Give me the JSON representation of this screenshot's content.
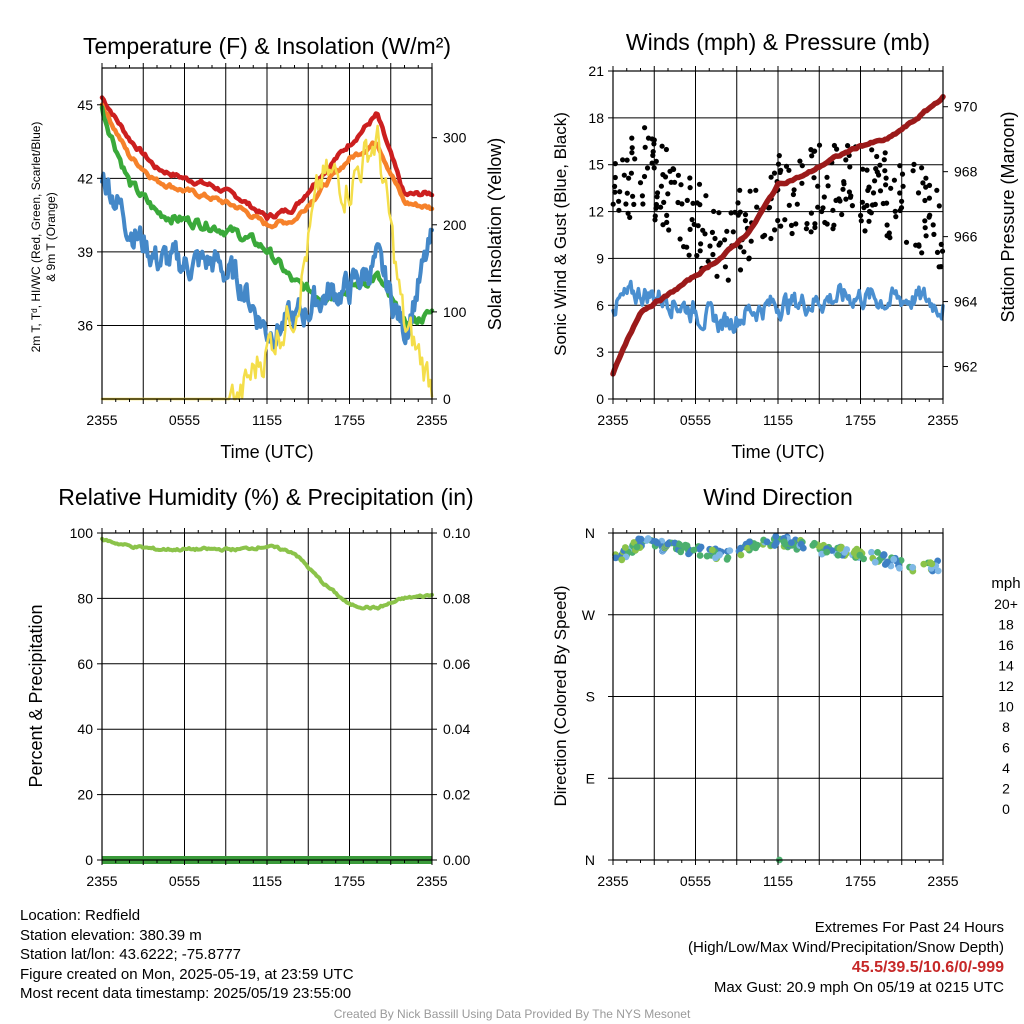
{
  "titles": {
    "temp": "Temperature (F) & Insolation (W/m²)",
    "winds": "Winds (mph) & Pressure (mb)",
    "rh": "Relative Humidity (%) & Precipitation (in)",
    "wdir": "Wind Direction"
  },
  "axis_labels": {
    "temp_left_line1": "2m T, Tᵈ, HI/WC (Red, Green, Scarlet/Blue)",
    "temp_left_line2": "& 9m T (Orange)",
    "temp_right": "Solar Insolation (Yellow)",
    "time": "Time (UTC)",
    "winds_left": "Sonic Wind & Gust (Blue, Black)",
    "winds_right": "Station Pressure (Maroon)",
    "rh_left": "Percent & Precipitation",
    "wdir_left": "Direction (Colored By Speed)"
  },
  "x_ticks": [
    "2355",
    "0555",
    "1155",
    "1755",
    "2355"
  ],
  "colorbar": {
    "unit": "mph",
    "labels": [
      "20+",
      "18",
      "16",
      "14",
      "12",
      "10",
      "8",
      "6",
      "4",
      "2",
      "0"
    ],
    "colors": [
      "#9e1a1a",
      "#c62828",
      "#e53935",
      "#f06a2c",
      "#f9a444",
      "#e8dc4e",
      "#8bc34a",
      "#4caf6e",
      "#3f80c4",
      "#7fb8e6",
      "#c7e6f7"
    ]
  },
  "footer": {
    "location": "Location: Redfield",
    "elevation": "Station elevation: 380.39 m",
    "latlon": "Station lat/lon: 43.6222; -75.8777",
    "created": "Figure created on Mon, 2025-05-19, at 23:59 UTC",
    "recent": "Most recent data timestamp: 2025/05/19 23:55:00",
    "extremes_title": "Extremes For Past 24 Hours",
    "extremes_sub": "(High/Low/Max Wind/Precipitation/Snow Depth)",
    "extremes_values": "45.5/39.5/10.6/0/-999",
    "max_gust": "Max Gust: 20.9 mph On 05/19 at 0215 UTC"
  },
  "credit": "Created By Nick Bassill Using Data Provided By The NYS Mesonet",
  "chart_data": [
    {
      "id": "temp",
      "type": "line",
      "title": "Temperature (F) & Insolation (W/m2)",
      "xlabel": "Time (UTC)",
      "ylabel": "2m T, Td, HI/WC (Red, Green, Scarlet/Blue) & 9m T (Orange)",
      "y2label": "Solar Insolation (Yellow)",
      "x_hours": [
        0,
        2,
        4,
        6,
        8,
        10,
        12,
        14,
        16,
        18,
        20,
        22,
        24
      ],
      "ylim": [
        33,
        46.5
      ],
      "y_ticks": [
        36,
        39,
        42,
        45
      ],
      "y2lim": [
        0,
        380
      ],
      "y2_ticks": [
        0,
        100,
        200,
        300
      ],
      "series": [
        {
          "name": "2m T",
          "color": "#cc1f1f",
          "axis": "left",
          "values": [
            45.3,
            43.6,
            42.4,
            42.0,
            41.7,
            41.2,
            40.4,
            40.8,
            42.2,
            43.4,
            44.6,
            41.3,
            41.4
          ],
          "noise": 0.15
        },
        {
          "name": "9m T",
          "color": "#f6812a",
          "axis": "left",
          "values": [
            45.0,
            42.9,
            41.9,
            41.5,
            41.2,
            40.8,
            40.1,
            40.3,
            41.6,
            42.8,
            43.5,
            41.0,
            40.8
          ],
          "noise": 0.15
        },
        {
          "name": "Td",
          "color": "#3aa93a",
          "axis": "left",
          "values": [
            44.8,
            41.8,
            40.6,
            40.3,
            40.1,
            39.7,
            39.1,
            37.7,
            37.2,
            37.5,
            38.0,
            36.0,
            36.5
          ],
          "noise": 0.3
        },
        {
          "name": "HI/WC",
          "color": "#4488c8",
          "axis": "left",
          "values": [
            42.3,
            40.1,
            38.7,
            38.5,
            38.6,
            37.8,
            35.8,
            36.2,
            37.2,
            37.5,
            38.6,
            35.8,
            39.4
          ],
          "noise": 0.9
        },
        {
          "name": "Solar Insolation",
          "color": "#f4de4a",
          "axis": "right",
          "values": [
            0,
            0,
            0,
            0,
            0,
            0,
            60,
            110,
            250,
            250,
            300,
            80,
            20
          ],
          "noise": 35
        }
      ]
    },
    {
      "id": "winds",
      "type": "line",
      "title": "Winds (mph) & Pressure (mb)",
      "xlabel": "Time (UTC)",
      "ylabel": "Sonic Wind & Gust (Blue, Black)",
      "y2label": "Station Pressure (Maroon)",
      "x_hours": [
        0,
        2,
        4,
        6,
        8,
        10,
        12,
        14,
        16,
        18,
        20,
        22,
        24
      ],
      "ylim": [
        0,
        21
      ],
      "y_ticks": [
        0,
        3,
        6,
        9,
        12,
        15,
        18,
        21
      ],
      "y2lim": [
        961.0,
        971.1
      ],
      "y2_ticks": [
        962,
        964,
        966,
        968,
        970
      ],
      "series": [
        {
          "name": "Sonic Wind",
          "color": "#4a8fd0",
          "axis": "left",
          "values": [
            6.0,
            6.8,
            6.5,
            5.6,
            4.8,
            5.7,
            6.1,
            6.2,
            6.5,
            6.6,
            6.3,
            6.5,
            6.0
          ],
          "noise": 1.0
        },
        {
          "name": "Station Pressure",
          "color": "#9b1a1a",
          "axis": "right",
          "values": [
            961.8,
            963.7,
            964.2,
            964.8,
            965.4,
            966.2,
            967.6,
            967.9,
            968.4,
            968.8,
            969.0,
            969.6,
            970.3
          ],
          "noise": 0.05
        }
      ],
      "scatter": {
        "name": "Gust",
        "color": "#000000",
        "axis": "left",
        "x_hours": [
          0,
          2,
          4,
          6,
          8,
          10,
          12,
          14,
          16,
          18,
          20,
          22,
          24
        ],
        "values": [
          13.5,
          15.0,
          13.5,
          11.5,
          10.0,
          11.5,
          13.0,
          13.5,
          13.5,
          13.5,
          13.0,
          12.5,
          11.0
        ],
        "noise": 2.8
      }
    },
    {
      "id": "rh",
      "type": "line",
      "title": "Relative Humidity (%) & Precipitation (in)",
      "xlabel": "",
      "ylabel": "Percent & Precipitation",
      "x_hours": [
        0,
        2,
        4,
        6,
        8,
        10,
        12,
        14,
        16,
        18,
        20,
        22,
        24
      ],
      "ylim": [
        0,
        100
      ],
      "y_ticks": [
        0,
        20,
        40,
        60,
        80,
        100
      ],
      "y2lim": [
        0,
        0.1
      ],
      "y2_ticks": [
        "0.00",
        "0.02",
        "0.04",
        "0.06",
        "0.08",
        "0.10"
      ],
      "series": [
        {
          "name": "Relative Humidity",
          "color": "#8bc34a",
          "axis": "left",
          "values": [
            98,
            96,
            95,
            95,
            95,
            95,
            96,
            94,
            85,
            78,
            77,
            80,
            81
          ],
          "noise": 0.6
        },
        {
          "name": "Precipitation",
          "color": "#3a9a3a",
          "axis": "right",
          "values": [
            0,
            0,
            0,
            0,
            0,
            0,
            0,
            0,
            0,
            0,
            0,
            0,
            0
          ],
          "noise": 0
        }
      ]
    },
    {
      "id": "wdir",
      "type": "scatter",
      "title": "Wind Direction",
      "ylabel": "Direction (Colored By Speed)",
      "x_hours": [
        0,
        2,
        4,
        6,
        8,
        10,
        12,
        14,
        16,
        18,
        20,
        22,
        24
      ],
      "y_ticks": [
        "N",
        "W",
        "S",
        "E",
        "N"
      ],
      "ylim_deg": [
        0,
        360
      ],
      "series": [
        {
          "name": "Wind Direction (deg)",
          "axis": "left",
          "values": [
            330,
            350,
            345,
            342,
            335,
            345,
            352,
            345,
            340,
            337,
            330,
            320,
            325
          ],
          "noise": 6
        }
      ],
      "extra_points": [
        {
          "x_hour": 12.1,
          "deg": 0,
          "speed": 6
        }
      ]
    }
  ]
}
